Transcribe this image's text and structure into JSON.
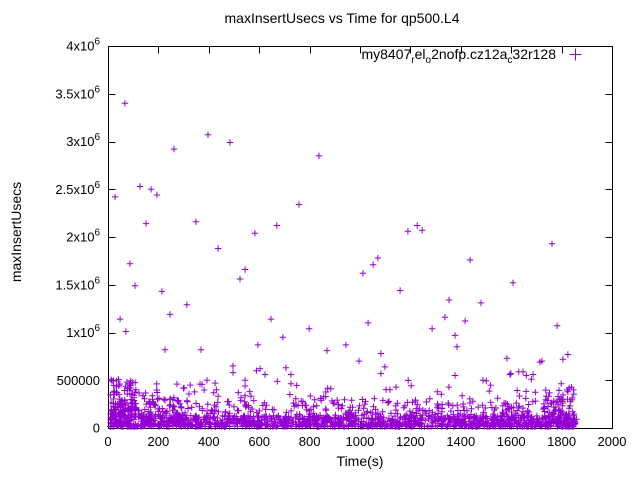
{
  "window": {
    "background": "#ffffff"
  },
  "chart_data": {
    "type": "scatter",
    "title": "maxInsertUsecs vs Time for qp500.L4",
    "xlabel": "Time(s)",
    "ylabel": "maxInsertUsecs",
    "xlim": [
      0,
      2000
    ],
    "ylim": [
      0,
      4000000
    ],
    "grid": false,
    "legend_position": "top-right-inside",
    "x_ticks": [
      0,
      200,
      400,
      600,
      800,
      1000,
      1200,
      1400,
      1600,
      1800,
      2000
    ],
    "y_ticks": [
      {
        "value": 0,
        "label": "0"
      },
      {
        "value": 500000,
        "label": "500000"
      },
      {
        "value": 1000000,
        "label": "1x10^6"
      },
      {
        "value": 1500000,
        "label": "1.5x10^6"
      },
      {
        "value": 2000000,
        "label": "2x10^6"
      },
      {
        "value": 2500000,
        "label": "2.5x10^6"
      },
      {
        "value": 3000000,
        "label": "3x10^6"
      },
      {
        "value": 3500000,
        "label": "3.5x10^6"
      },
      {
        "value": 4000000,
        "label": "4x10^6"
      }
    ],
    "marker": {
      "shape": "plus",
      "color": "#9400d3",
      "size": 7
    },
    "series": [
      {
        "name": "my8407_rel_o2nofp.cz12a_c32r128",
        "label_segments": [
          {
            "text": "my8407"
          },
          {
            "text": "r",
            "sub": true
          },
          {
            "text": "el"
          },
          {
            "text": "o",
            "sub": true
          },
          {
            "text": "2nofp.cz12a"
          },
          {
            "text": "c",
            "sub": true
          },
          {
            "text": "32r128"
          }
        ],
        "outlier_points": [
          [
            67,
            3400000
          ],
          [
            397,
            3070000
          ],
          [
            484,
            2990000
          ],
          [
            262,
            2920000
          ],
          [
            837,
            2850000
          ],
          [
            127,
            2530000
          ],
          [
            171,
            2500000
          ],
          [
            194,
            2440000
          ],
          [
            28,
            2420000
          ],
          [
            758,
            2340000
          ],
          [
            349,
            2160000
          ],
          [
            151,
            2140000
          ],
          [
            670,
            2120000
          ],
          [
            1227,
            2120000
          ],
          [
            1247,
            2070000
          ],
          [
            1190,
            2060000
          ],
          [
            583,
            2040000
          ],
          [
            1762,
            1930000
          ],
          [
            437,
            1880000
          ],
          [
            1071,
            1780000
          ],
          [
            1437,
            1760000
          ],
          [
            87,
            1720000
          ],
          [
            1052,
            1710000
          ],
          [
            544,
            1660000
          ],
          [
            1012,
            1620000
          ],
          [
            524,
            1560000
          ],
          [
            1607,
            1520000
          ],
          [
            107,
            1490000
          ],
          [
            1159,
            1440000
          ],
          [
            214,
            1430000
          ],
          [
            1353,
            1340000
          ],
          [
            1480,
            1310000
          ],
          [
            313,
            1290000
          ],
          [
            246,
            1190000
          ],
          [
            1337,
            1160000
          ],
          [
            48,
            1140000
          ],
          [
            647,
            1140000
          ],
          [
            1417,
            1120000
          ],
          [
            1032,
            1100000
          ],
          [
            1782,
            1070000
          ],
          [
            798,
            1040000
          ],
          [
            1286,
            1040000
          ],
          [
            71,
            1010000
          ],
          [
            1377,
            970000
          ],
          [
            694,
            950000
          ],
          [
            944,
            870000
          ],
          [
            595,
            870000
          ],
          [
            1385,
            850000
          ],
          [
            226,
            820000
          ],
          [
            369,
            820000
          ],
          [
            869,
            810000
          ],
          [
            1083,
            780000
          ],
          [
            1825,
            770000
          ],
          [
            1583,
            730000
          ],
          [
            1805,
            720000
          ],
          [
            996,
            700000
          ],
          [
            1722,
            700000
          ],
          [
            1714,
            690000
          ],
          [
            1099,
            640000
          ],
          [
            496,
            650000
          ],
          [
            706,
            630000
          ],
          [
            603,
            620000
          ],
          [
            589,
            600000
          ],
          [
            1647,
            590000
          ],
          [
            1630,
            590000
          ],
          [
            496,
            580000
          ],
          [
            1083,
            570000
          ],
          [
            1599,
            570000
          ],
          [
            726,
            560000
          ],
          [
            1687,
            560000
          ],
          [
            1595,
            560000
          ],
          [
            623,
            560000
          ],
          [
            1377,
            550000
          ],
          [
            1660,
            550000
          ],
          [
            1680,
            510000
          ],
          [
            1488,
            500000
          ],
          [
            393,
            500000
          ],
          [
            425,
            470000
          ],
          [
            274,
            460000
          ],
          [
            365,
            460000
          ],
          [
            544,
            440000
          ],
          [
            302,
            420000
          ],
          [
            430,
            400000
          ],
          [
            1825,
            380000
          ],
          [
            420,
            370000
          ],
          [
            1786,
            330000
          ]
        ],
        "dense_band": {
          "seed": 20240519,
          "clusters": [
            {
              "count": 900,
              "x": [
                8,
                1856
              ],
              "y": [
                15000,
                300000
              ],
              "power": 2.2
            },
            {
              "count": 600,
              "x": [
                8,
                1856
              ],
              "y": [
                12000,
                130000
              ],
              "power": 1.0
            },
            {
              "count": 130,
              "x": [
                8,
                112
              ],
              "y": [
                40000,
                510000
              ],
              "power": 1.4
            },
            {
              "count": 70,
              "x": [
                112,
                330
              ],
              "y": [
                20000,
                380000
              ],
              "power": 2.0
            },
            {
              "count": 60,
              "x": [
                140,
                1860
              ],
              "y": [
                300000,
                500000
              ],
              "power": 1.8
            },
            {
              "count": 45,
              "x": [
                1730,
                1860
              ],
              "y": [
                30000,
                430000
              ],
              "power": 1.6
            }
          ]
        }
      }
    ]
  }
}
